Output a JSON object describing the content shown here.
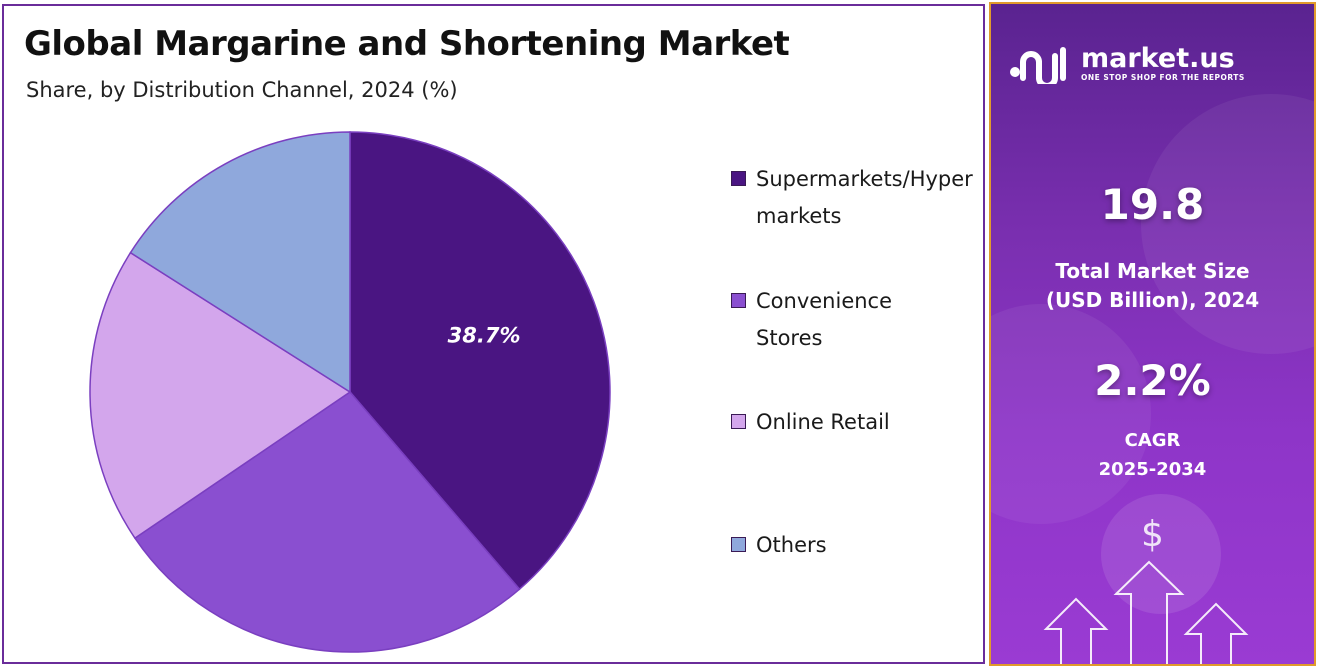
{
  "chart_data": {
    "type": "pie",
    "title": "Global Margarine and Shortening Market",
    "subtitle": "Share, by Distribution Channel, 2024 (%)",
    "categories": [
      "Supermarkets/Hypermarkets",
      "Convenience Stores",
      "Online Retail",
      "Others"
    ],
    "values": [
      38.7,
      26.8,
      18.5,
      16.0
    ],
    "colors": [
      "#4a1582",
      "#8a4fd0",
      "#d3a6ec",
      "#8fa8dc"
    ],
    "labels": [
      "38.7%",
      "",
      "",
      ""
    ],
    "start_angle_deg": 0,
    "direction": "clockwise",
    "legend_position": "right"
  },
  "legend": [
    {
      "label": "Supermarkets/Hypermarkets",
      "color": "#4a1582"
    },
    {
      "label": "Convenience Stores",
      "color": "#8a4fd0"
    },
    {
      "label": "Online Retail",
      "color": "#d3a6ec"
    },
    {
      "label": "Others",
      "color": "#8fa8dc"
    }
  ],
  "brand": {
    "name": "market.us",
    "tagline": "ONE STOP SHOP FOR THE REPORTS"
  },
  "stats": {
    "market_size_value": "19.8",
    "market_size_label_1": "Total Market Size",
    "market_size_label_2": "(USD Billion), 2024",
    "cagr_value": "2.2%",
    "cagr_label_1": "CAGR",
    "cagr_label_2": "2025-2034"
  },
  "icons": {
    "dollar": "$",
    "arrows": "up-arrow-icon"
  }
}
